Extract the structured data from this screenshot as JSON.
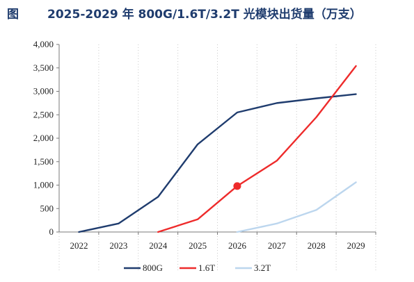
{
  "figure": {
    "label": "图",
    "title": "2025-2029 年 800G/1.6T/3.2T 光模块出货量（万支）"
  },
  "chart_data": {
    "type": "line",
    "title": "2025-2029 年 800G/1.6T/3.2T 光模块出货量（万支）",
    "xlabel": "",
    "ylabel": "",
    "x": [
      "2022",
      "2023",
      "2024",
      "2025",
      "2026",
      "2027",
      "2028",
      "2029"
    ],
    "ylim": [
      0,
      4000
    ],
    "yticks": [
      0,
      500,
      1000,
      1500,
      2000,
      2500,
      3000,
      3500,
      4000
    ],
    "ytick_labels": [
      "0",
      "500",
      "1,000",
      "1,500",
      "2,000",
      "2,500",
      "3,000",
      "3,500",
      "4,000"
    ],
    "grid": "vertical dotted",
    "legend_position": "bottom",
    "series": [
      {
        "name": "800G",
        "color": "#1f3c6e",
        "values": [
          0,
          180,
          750,
          1870,
          2550,
          2750,
          2850,
          2940
        ]
      },
      {
        "name": "1.6T",
        "color": "#ee2b2b",
        "values": [
          null,
          null,
          0,
          270,
          980,
          1520,
          2450,
          3540
        ]
      },
      {
        "name": "3.2T",
        "color": "#bcd6ee",
        "values": [
          null,
          null,
          null,
          null,
          0,
          180,
          470,
          1060
        ]
      }
    ],
    "markers": [
      {
        "series": "1.6T",
        "x": "2026",
        "y": 980
      }
    ]
  }
}
